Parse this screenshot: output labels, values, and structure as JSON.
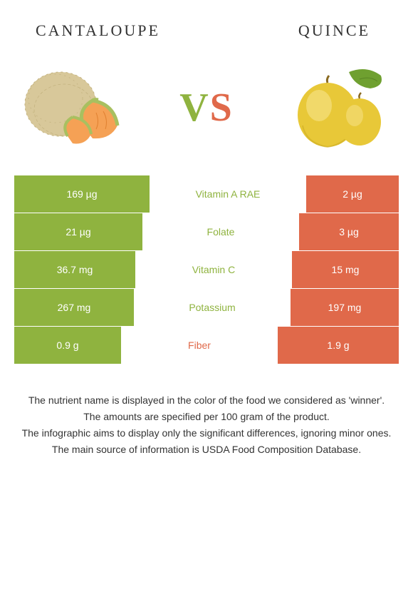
{
  "left_food": "CANTALOUPE",
  "right_food": "QUINCE",
  "vs_v": "V",
  "vs_s": "S",
  "colors": {
    "left": "#8fb33f",
    "right": "#e0694a",
    "cantaloupe_rind": "#d8c89a",
    "cantaloupe_net": "#c4b380",
    "cantaloupe_flesh": "#f5a155",
    "cantaloupe_rind_edge": "#a8c060",
    "quince_body": "#e8c838",
    "quince_shadow": "#c8a820",
    "quince_highlight": "#f5e080",
    "leaf": "#6fa030"
  },
  "table": {
    "total_width": 540,
    "mid_width": 220,
    "rows": [
      {
        "name": "Vitamin A RAE",
        "left_val": "169 µg",
        "right_val": "2 µg",
        "left_w": 190,
        "right_w": 130,
        "winner": "left"
      },
      {
        "name": "Folate",
        "left_val": "21 µg",
        "right_val": "3 µg",
        "left_w": 180,
        "right_w": 140,
        "winner": "left"
      },
      {
        "name": "Vitamin C",
        "left_val": "36.7 mg",
        "right_val": "15 mg",
        "left_w": 170,
        "right_w": 150,
        "winner": "left"
      },
      {
        "name": "Potassium",
        "left_val": "267 mg",
        "right_val": "197 mg",
        "left_w": 168,
        "right_w": 152,
        "winner": "left"
      },
      {
        "name": "Fiber",
        "left_val": "0.9 g",
        "right_val": "1.9 g",
        "left_w": 150,
        "right_w": 170,
        "winner": "right"
      }
    ]
  },
  "footer": [
    "The nutrient name is displayed in the color of the food we considered as 'winner'.",
    "The amounts are specified per 100 gram of the product.",
    "The infographic aims to display only the significant differences, ignoring minor ones.",
    "The main source of information is USDA Food Composition Database."
  ]
}
